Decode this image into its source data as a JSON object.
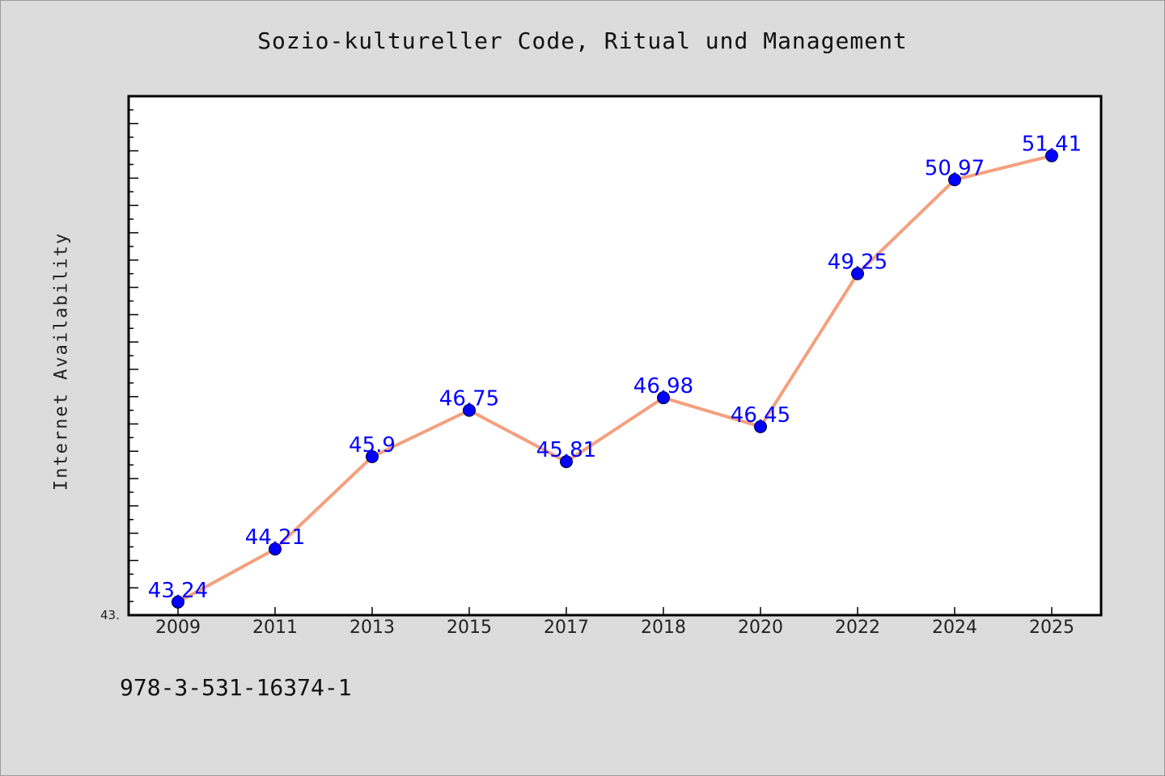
{
  "chart_data": {
    "type": "line",
    "title": "Sozio-kultureller Code, Ritual und Management",
    "xlabel": "",
    "ylabel": "Internet Availability",
    "categories": [
      "2009",
      "2011",
      "2013",
      "2015",
      "2017",
      "2018",
      "2020",
      "2022",
      "2024",
      "2025"
    ],
    "series": [
      {
        "values": [
          43.24,
          44.21,
          45.9,
          46.75,
          45.81,
          46.98,
          46.45,
          49.25,
          50.97,
          51.41
        ],
        "labels": [
          "43.24",
          "44.21",
          "45.9",
          "46.75",
          "45.81",
          "46.98",
          "46.45",
          "49.25",
          "50.97",
          "51.41"
        ],
        "color": "#f4a07e",
        "marker_color": "#0000ff"
      }
    ],
    "ylim": [
      43.0,
      52.5
    ],
    "y_min_label": "43.",
    "grid": false,
    "legend": "none"
  },
  "footer": {
    "code": "978-3-531-16374-1"
  },
  "colors": {
    "background": "#dcdcdc",
    "plot_background": "#ffffff",
    "line": "#f4a07e",
    "marker": "#0000ff",
    "data_label": "#0000ff"
  }
}
